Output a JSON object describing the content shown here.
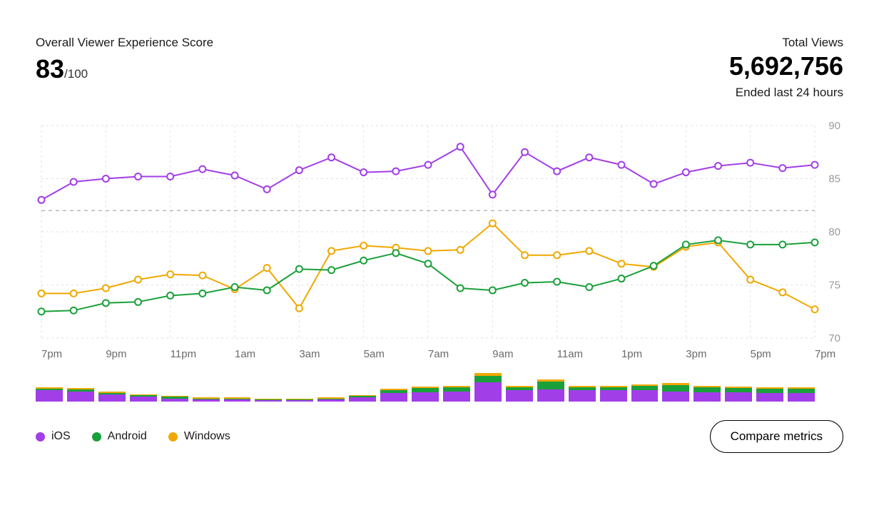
{
  "header": {
    "score_label": "Overall Viewer Experience Score",
    "score_value": "83",
    "score_denom": "/100",
    "views_label": "Total Views",
    "views_value": "5,692,756",
    "views_sub": "Ended last 24 hours"
  },
  "colors": {
    "ios": "#a23ee8",
    "android": "#1aa03a",
    "windows": "#f0a800",
    "grid": "#e1e1e1",
    "dashed": "#b8b8b8",
    "axis_text": "#9a9a9a",
    "bg": "#ffffff"
  },
  "line_chart": {
    "type": "line",
    "ylim": [
      70,
      90
    ],
    "yticks": [
      70,
      75,
      80,
      85,
      90
    ],
    "ref_line": 82,
    "marker_radius": 4.5,
    "line_width": 2,
    "x_labels": [
      "7pm",
      "9pm",
      "11pm",
      "1am",
      "3am",
      "5am",
      "7am",
      "9am",
      "11am",
      "1pm",
      "3pm",
      "5pm",
      "7pm"
    ],
    "series": {
      "ios": [
        83,
        84.7,
        85,
        85.2,
        85.2,
        85.9,
        85.3,
        84,
        85.8,
        87,
        85.6,
        85.7,
        86.3,
        88,
        83.5,
        87.5,
        85.7,
        87,
        86.3,
        84.5,
        85.6,
        86.2,
        86.5,
        86,
        86.3
      ],
      "android": [
        72.5,
        72.6,
        73.3,
        73.4,
        74,
        74.2,
        74.8,
        74.5,
        76.5,
        76.4,
        77.3,
        78,
        77,
        74.7,
        74.5,
        75.2,
        75.3,
        74.8,
        75.6,
        76.8,
        78.8,
        79.2,
        78.8,
        78.8,
        79
      ],
      "windows": [
        74.2,
        74.2,
        74.7,
        75.5,
        76,
        75.9,
        74.6,
        76.6,
        72.8,
        78.2,
        78.7,
        78.5,
        78.2,
        78.3,
        80.8,
        77.8,
        77.8,
        78.2,
        77,
        76.7,
        78.6,
        79,
        75.5,
        74.3,
        72.7
      ]
    }
  },
  "bar_chart": {
    "type": "stacked-bar",
    "max_total": 36,
    "bars": [
      {
        "ios": 14,
        "android": 2,
        "windows": 2
      },
      {
        "ios": 13,
        "android": 2,
        "windows": 2
      },
      {
        "ios": 9,
        "android": 2,
        "windows": 2
      },
      {
        "ios": 6,
        "android": 2,
        "windows": 1
      },
      {
        "ios": 4,
        "android": 2,
        "windows": 1
      },
      {
        "ios": 3,
        "android": 1,
        "windows": 1
      },
      {
        "ios": 3,
        "android": 1,
        "windows": 1
      },
      {
        "ios": 2,
        "android": 1,
        "windows": 1
      },
      {
        "ios": 2,
        "android": 1,
        "windows": 1
      },
      {
        "ios": 3,
        "android": 1,
        "windows": 1
      },
      {
        "ios": 5,
        "android": 2,
        "windows": 1
      },
      {
        "ios": 11,
        "android": 3,
        "windows": 2
      },
      {
        "ios": 12,
        "android": 5,
        "windows": 2
      },
      {
        "ios": 13,
        "android": 5,
        "windows": 2
      },
      {
        "ios": 24,
        "android": 8,
        "windows": 4
      },
      {
        "ios": 14,
        "android": 4,
        "windows": 2
      },
      {
        "ios": 15,
        "android": 10,
        "windows": 3
      },
      {
        "ios": 14,
        "android": 4,
        "windows": 2
      },
      {
        "ios": 14,
        "android": 4,
        "windows": 2
      },
      {
        "ios": 14,
        "android": 6,
        "windows": 2
      },
      {
        "ios": 13,
        "android": 8,
        "windows": 2
      },
      {
        "ios": 12,
        "android": 6,
        "windows": 2
      },
      {
        "ios": 12,
        "android": 5,
        "windows": 2
      },
      {
        "ios": 11,
        "android": 5,
        "windows": 2
      },
      {
        "ios": 11,
        "android": 5,
        "windows": 2
      }
    ]
  },
  "legend": {
    "ios": "iOS",
    "android": "Android",
    "windows": "Windows"
  },
  "button": {
    "compare": "Compare metrics"
  }
}
